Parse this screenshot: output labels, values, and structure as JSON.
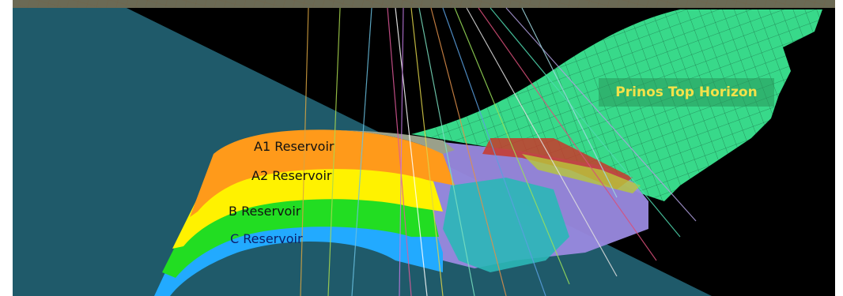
{
  "figure": {
    "horizon_label": "Prinos Top Horizon",
    "reservoirs": [
      {
        "label": "A1 Reservoir",
        "color": "#ff9a1a"
      },
      {
        "label": "A2 Reservoir",
        "color": "#fff200"
      },
      {
        "label": "B Reservoir",
        "color": "#22dd22"
      },
      {
        "label": "C Reservoir",
        "color": "#22aaff"
      }
    ],
    "colors": {
      "background": "#000000",
      "water_plane": "#1f5a6a",
      "horizon_surface": "#38d98a",
      "fault_block": "#9a8ae0",
      "cyan_block": "#2bb7b7",
      "top_band": "#6b6a55"
    }
  }
}
